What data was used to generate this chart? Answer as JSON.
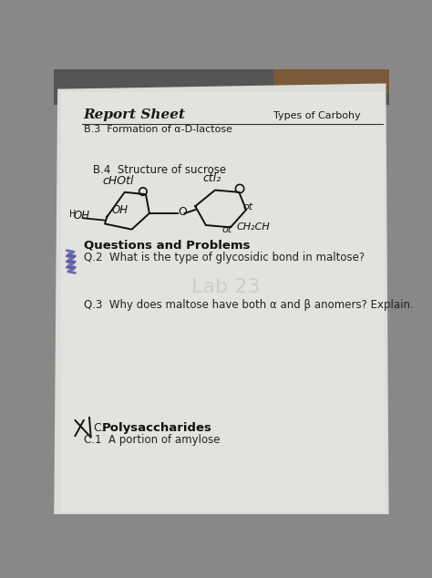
{
  "title_bold": "Report Sheet",
  "top_right_text": "Types of Carbohy",
  "subtitle": "B.3  Formation of α-D-lactose",
  "section_b4": "B.4  Structure of sucrose",
  "label_CHOH": "cHOtl",
  "label_CH2": "ctl₂",
  "label_OH_left": "OH",
  "label_OH_far": "OH",
  "label_Ot1": "ot",
  "label_Ot2": "ot",
  "label_CH2CH": "CH₂CH",
  "questions_header": "Questions and Problems",
  "q2_text": "Q.2  What is the type of glycosidic bond in maltose?",
  "q3_text": "Q.3  Why does maltose have both α and β anomers? Explain.",
  "polysaccharides": "Polysaccharides",
  "c1_text": "C.1  A portion of amylose",
  "paper_color": "#e0e0dc",
  "top_bg_color": "#6a6a6a",
  "text_color": "#1a1a1a",
  "blue_ink": "#4040a0"
}
